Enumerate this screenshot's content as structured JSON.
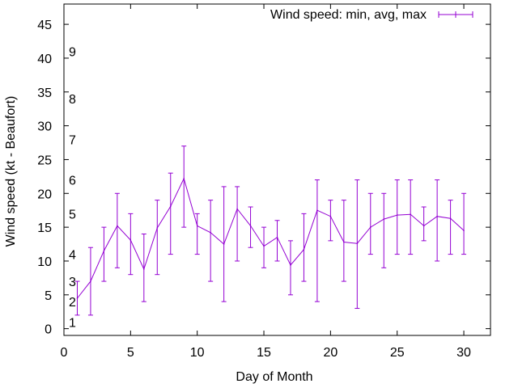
{
  "chart_data": {
    "type": "line",
    "title": "",
    "xlabel": "Day of Month",
    "ylabel": "Wind speed (kt - Beaufort)",
    "xlim": [
      0,
      32
    ],
    "ylim": [
      -1,
      48
    ],
    "x_ticks": [
      0,
      5,
      10,
      15,
      20,
      25,
      30
    ],
    "y_ticks": [
      0,
      5,
      10,
      15,
      20,
      25,
      30,
      35,
      40,
      45
    ],
    "grid": false,
    "legend_position": "top-right",
    "series_color": "#9400d3",
    "beaufort_labels": [
      {
        "label": "1",
        "value": 1
      },
      {
        "label": "2",
        "value": 4
      },
      {
        "label": "3",
        "value": 7
      },
      {
        "label": "4",
        "value": 11
      },
      {
        "label": "5",
        "value": 17
      },
      {
        "label": "6",
        "value": 22
      },
      {
        "label": "7",
        "value": 28
      },
      {
        "label": "8",
        "value": 34
      },
      {
        "label": "9",
        "value": 41
      }
    ],
    "series": [
      {
        "name": "Wind speed: min, avg, max",
        "x": [
          1,
          2,
          3,
          4,
          5,
          6,
          7,
          8,
          9,
          10,
          11,
          12,
          13,
          14,
          15,
          16,
          17,
          18,
          19,
          20,
          21,
          22,
          23,
          24,
          25,
          26,
          27,
          28,
          29,
          30
        ],
        "avg": [
          4.5,
          7,
          11.5,
          15.2,
          13.1,
          8.8,
          14.9,
          18.1,
          22.2,
          15.2,
          14.2,
          12.5,
          17.7,
          15.2,
          12.2,
          13.5,
          9.4,
          11.7,
          17.5,
          16.6,
          12.8,
          12.6,
          15,
          16.2,
          16.8,
          16.9,
          15.2,
          16.6,
          16.3,
          14.5
        ],
        "min": [
          2,
          2,
          7,
          9,
          8,
          4,
          8,
          11,
          15,
          11,
          7,
          4,
          10,
          12,
          9,
          10,
          5,
          7,
          4,
          13,
          7,
          3,
          11,
          9,
          11,
          11,
          13,
          10,
          11,
          11
        ],
        "max": [
          7,
          12,
          15,
          20,
          17,
          14,
          19,
          23,
          27,
          17,
          19,
          21,
          21,
          18,
          15,
          16,
          13,
          17,
          22,
          19,
          19,
          22,
          20,
          20,
          22,
          22,
          18,
          22,
          19,
          20
        ]
      }
    ]
  }
}
